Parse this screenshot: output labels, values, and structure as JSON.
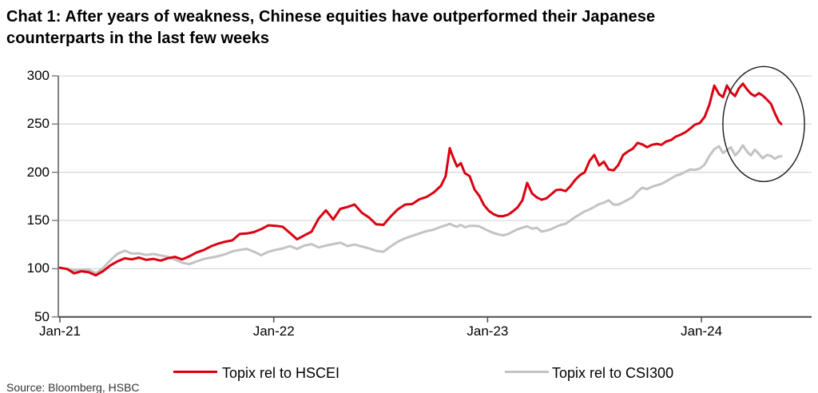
{
  "title": {
    "line1": "Chat 1: After years of weakness, Chinese equities have outperformed their Japanese",
    "line2": "counterparts in the last few weeks"
  },
  "source_note": "Source: Bloomberg, HSBC",
  "chart_data": {
    "type": "line",
    "title": "Chat 1: After years of weakness, Chinese equities have outperformed their Japanese counterparts in the last few weeks",
    "xlabel": "",
    "ylabel": "",
    "x_axis": {
      "ticks": [
        {
          "label": "Jan-21",
          "year": 2021.0
        },
        {
          "label": "Jan-22",
          "year": 2022.0
        },
        {
          "label": "Jan-23",
          "year": 2023.0
        },
        {
          "label": "Jan-24",
          "year": 2024.0
        }
      ],
      "range_years": [
        2021.0,
        2024.52
      ]
    },
    "y_axis": {
      "ticks": [
        50,
        100,
        150,
        200,
        250,
        300
      ],
      "range": [
        50,
        300
      ],
      "gridlines": true
    },
    "series": [
      {
        "name": "Topix rel to HSCEI",
        "color": "#DB0011",
        "points": [
          [
            2021.0,
            101
          ],
          [
            2021.034,
            99.6
          ],
          [
            2021.067,
            95.2
          ],
          [
            2021.101,
            97.3
          ],
          [
            2021.134,
            96.4
          ],
          [
            2021.168,
            93.1
          ],
          [
            2021.202,
            97.5
          ],
          [
            2021.235,
            103.3
          ],
          [
            2021.269,
            107.6
          ],
          [
            2021.303,
            110.7
          ],
          [
            2021.336,
            109.7
          ],
          [
            2021.37,
            111.5
          ],
          [
            2021.403,
            109.2
          ],
          [
            2021.437,
            110.2
          ],
          [
            2021.471,
            108.3
          ],
          [
            2021.504,
            110.8
          ],
          [
            2021.538,
            112.2
          ],
          [
            2021.572,
            109.6
          ],
          [
            2021.605,
            112.8
          ],
          [
            2021.639,
            116.8
          ],
          [
            2021.672,
            119.3
          ],
          [
            2021.706,
            123.2
          ],
          [
            2021.74,
            126
          ],
          [
            2021.773,
            128
          ],
          [
            2021.807,
            129.5
          ],
          [
            2021.841,
            136
          ],
          [
            2021.874,
            136.5
          ],
          [
            2021.908,
            138
          ],
          [
            2021.941,
            141
          ],
          [
            2021.975,
            145
          ],
          [
            2022.009,
            144.5
          ],
          [
            2022.042,
            143.5
          ],
          [
            2022.076,
            137
          ],
          [
            2022.109,
            130.5
          ],
          [
            2022.143,
            134.5
          ],
          [
            2022.177,
            138.5
          ],
          [
            2022.21,
            152
          ],
          [
            2022.244,
            160.5
          ],
          [
            2022.278,
            151
          ],
          [
            2022.311,
            162
          ],
          [
            2022.345,
            164
          ],
          [
            2022.378,
            166.5
          ],
          [
            2022.412,
            158
          ],
          [
            2022.446,
            153
          ],
          [
            2022.479,
            146
          ],
          [
            2022.513,
            145.5
          ],
          [
            2022.546,
            154
          ],
          [
            2022.58,
            161.5
          ],
          [
            2022.614,
            166.5
          ],
          [
            2022.647,
            167
          ],
          [
            2022.681,
            172
          ],
          [
            2022.715,
            174.5
          ],
          [
            2022.748,
            179
          ],
          [
            2022.782,
            186
          ],
          [
            2022.804,
            196
          ],
          [
            2022.823,
            225
          ],
          [
            2022.838,
            216
          ],
          [
            2022.857,
            206
          ],
          [
            2022.875,
            209.5
          ],
          [
            2022.894,
            199
          ],
          [
            2022.916,
            196
          ],
          [
            2022.939,
            182
          ],
          [
            2022.961,
            175.5
          ],
          [
            2022.983,
            166
          ],
          [
            2023.006,
            160
          ],
          [
            2023.028,
            156.5
          ],
          [
            2023.051,
            154.5
          ],
          [
            2023.073,
            154.5
          ],
          [
            2023.096,
            156
          ],
          [
            2023.118,
            159.5
          ],
          [
            2023.14,
            163.5
          ],
          [
            2023.163,
            171
          ],
          [
            2023.185,
            189
          ],
          [
            2023.208,
            178
          ],
          [
            2023.23,
            174
          ],
          [
            2023.252,
            171.5
          ],
          [
            2023.275,
            173
          ],
          [
            2023.297,
            177
          ],
          [
            2023.32,
            181.5
          ],
          [
            2023.342,
            182
          ],
          [
            2023.365,
            180.5
          ],
          [
            2023.387,
            185.5
          ],
          [
            2023.409,
            192
          ],
          [
            2023.432,
            197
          ],
          [
            2023.454,
            200
          ],
          [
            2023.477,
            212
          ],
          [
            2023.499,
            218
          ],
          [
            2023.522,
            207
          ],
          [
            2023.544,
            211
          ],
          [
            2023.566,
            203
          ],
          [
            2023.589,
            202
          ],
          [
            2023.611,
            207.5
          ],
          [
            2023.634,
            218
          ],
          [
            2023.656,
            221.5
          ],
          [
            2023.679,
            224.5
          ],
          [
            2023.701,
            230.5
          ],
          [
            2023.723,
            229
          ],
          [
            2023.746,
            226
          ],
          [
            2023.768,
            228.5
          ],
          [
            2023.791,
            229.5
          ],
          [
            2023.813,
            228.5
          ],
          [
            2023.835,
            232
          ],
          [
            2023.858,
            233.5
          ],
          [
            2023.88,
            237
          ],
          [
            2023.903,
            239
          ],
          [
            2023.925,
            241.5
          ],
          [
            2023.948,
            245.5
          ],
          [
            2023.97,
            249.5
          ],
          [
            2023.992,
            251
          ],
          [
            2024.015,
            257.5
          ],
          [
            2024.037,
            270
          ],
          [
            2024.06,
            290
          ],
          [
            2024.082,
            281
          ],
          [
            2024.101,
            278
          ],
          [
            2024.119,
            290
          ],
          [
            2024.138,
            283
          ],
          [
            2024.157,
            279
          ],
          [
            2024.175,
            287
          ],
          [
            2024.194,
            292
          ],
          [
            2024.213,
            286
          ],
          [
            2024.231,
            281.5
          ],
          [
            2024.25,
            279
          ],
          [
            2024.269,
            282
          ],
          [
            2024.287,
            279.5
          ],
          [
            2024.306,
            275.5
          ],
          [
            2024.325,
            271
          ],
          [
            2024.343,
            261.5
          ],
          [
            2024.362,
            252.5
          ],
          [
            2024.373,
            250
          ]
        ]
      },
      {
        "name": "Topix rel to CSI300",
        "color": "#C3C3C3",
        "points": [
          [
            2021.0,
            101
          ],
          [
            2021.034,
            99.7
          ],
          [
            2021.067,
            98.3
          ],
          [
            2021.101,
            98.9
          ],
          [
            2021.134,
            99.2
          ],
          [
            2021.168,
            95.2
          ],
          [
            2021.202,
            100.8
          ],
          [
            2021.235,
            108.6
          ],
          [
            2021.269,
            115.4
          ],
          [
            2021.303,
            118.6
          ],
          [
            2021.336,
            115.7
          ],
          [
            2021.37,
            115.9
          ],
          [
            2021.403,
            114.2
          ],
          [
            2021.437,
            115.3
          ],
          [
            2021.471,
            113.6
          ],
          [
            2021.504,
            112.4
          ],
          [
            2021.538,
            109.4
          ],
          [
            2021.572,
            106.3
          ],
          [
            2021.605,
            104.7
          ],
          [
            2021.639,
            107.6
          ],
          [
            2021.672,
            110
          ],
          [
            2021.706,
            111.5
          ],
          [
            2021.74,
            113
          ],
          [
            2021.773,
            115
          ],
          [
            2021.807,
            118
          ],
          [
            2021.841,
            119.5
          ],
          [
            2021.874,
            120.5
          ],
          [
            2021.908,
            117.5
          ],
          [
            2021.941,
            114
          ],
          [
            2021.975,
            117.5
          ],
          [
            2022.009,
            119.5
          ],
          [
            2022.042,
            121
          ],
          [
            2022.076,
            123.5
          ],
          [
            2022.109,
            120.5
          ],
          [
            2022.143,
            124
          ],
          [
            2022.177,
            125.5
          ],
          [
            2022.21,
            122
          ],
          [
            2022.244,
            124
          ],
          [
            2022.278,
            125.5
          ],
          [
            2022.311,
            127
          ],
          [
            2022.345,
            123.5
          ],
          [
            2022.378,
            125
          ],
          [
            2022.412,
            123
          ],
          [
            2022.446,
            121
          ],
          [
            2022.479,
            118.5
          ],
          [
            2022.513,
            117.5
          ],
          [
            2022.546,
            123
          ],
          [
            2022.58,
            128
          ],
          [
            2022.614,
            131.5
          ],
          [
            2022.647,
            134
          ],
          [
            2022.681,
            136.5
          ],
          [
            2022.715,
            139
          ],
          [
            2022.748,
            140.5
          ],
          [
            2022.782,
            143.5
          ],
          [
            2022.804,
            145
          ],
          [
            2022.823,
            146.5
          ],
          [
            2022.838,
            145
          ],
          [
            2022.857,
            143.5
          ],
          [
            2022.875,
            145.5
          ],
          [
            2022.894,
            143
          ],
          [
            2022.916,
            144.5
          ],
          [
            2022.939,
            144.5
          ],
          [
            2022.961,
            144
          ],
          [
            2022.983,
            141.5
          ],
          [
            2023.006,
            139
          ],
          [
            2023.028,
            137
          ],
          [
            2023.051,
            135.5
          ],
          [
            2023.073,
            134.5
          ],
          [
            2023.096,
            136
          ],
          [
            2023.118,
            138.5
          ],
          [
            2023.14,
            141
          ],
          [
            2023.163,
            142.5
          ],
          [
            2023.185,
            144
          ],
          [
            2023.208,
            141.5
          ],
          [
            2023.23,
            142.5
          ],
          [
            2023.252,
            138.5
          ],
          [
            2023.275,
            139.5
          ],
          [
            2023.297,
            141
          ],
          [
            2023.32,
            143.5
          ],
          [
            2023.342,
            145.5
          ],
          [
            2023.365,
            146.5
          ],
          [
            2023.387,
            150
          ],
          [
            2023.409,
            153.5
          ],
          [
            2023.432,
            156.5
          ],
          [
            2023.454,
            159.5
          ],
          [
            2023.477,
            161.5
          ],
          [
            2023.499,
            164
          ],
          [
            2023.522,
            167
          ],
          [
            2023.544,
            168.5
          ],
          [
            2023.566,
            171
          ],
          [
            2023.589,
            166.5
          ],
          [
            2023.611,
            166.5
          ],
          [
            2023.634,
            169
          ],
          [
            2023.656,
            171.5
          ],
          [
            2023.679,
            174.5
          ],
          [
            2023.701,
            180
          ],
          [
            2023.723,
            184
          ],
          [
            2023.746,
            182.5
          ],
          [
            2023.768,
            185
          ],
          [
            2023.791,
            186.5
          ],
          [
            2023.813,
            188
          ],
          [
            2023.835,
            190.5
          ],
          [
            2023.858,
            193.5
          ],
          [
            2023.88,
            196.5
          ],
          [
            2023.903,
            198
          ],
          [
            2023.925,
            200.5
          ],
          [
            2023.948,
            203
          ],
          [
            2023.97,
            202.5
          ],
          [
            2023.992,
            204
          ],
          [
            2024.015,
            208
          ],
          [
            2024.037,
            217
          ],
          [
            2024.06,
            224
          ],
          [
            2024.082,
            227
          ],
          [
            2024.101,
            220
          ],
          [
            2024.119,
            223
          ],
          [
            2024.138,
            226
          ],
          [
            2024.157,
            217.5
          ],
          [
            2024.175,
            221.5
          ],
          [
            2024.194,
            228
          ],
          [
            2024.213,
            221.5
          ],
          [
            2024.231,
            217.5
          ],
          [
            2024.25,
            223.5
          ],
          [
            2024.269,
            219
          ],
          [
            2024.287,
            214.5
          ],
          [
            2024.306,
            218
          ],
          [
            2024.325,
            217
          ],
          [
            2024.343,
            214
          ],
          [
            2024.362,
            216.5
          ],
          [
            2024.373,
            216.5
          ]
        ]
      }
    ],
    "annotations": [
      {
        "type": "ellipse",
        "center": [
          2024.291,
          250
        ],
        "radius_years": 0.191,
        "radius_value": 59.7,
        "color": "#1a1a1a"
      }
    ],
    "legend_position": "bottom"
  },
  "colors": {
    "gridline": "#d9d9d9",
    "y_axis": "#808080",
    "x_axis": "#4d4d4d",
    "text": "#000000"
  }
}
